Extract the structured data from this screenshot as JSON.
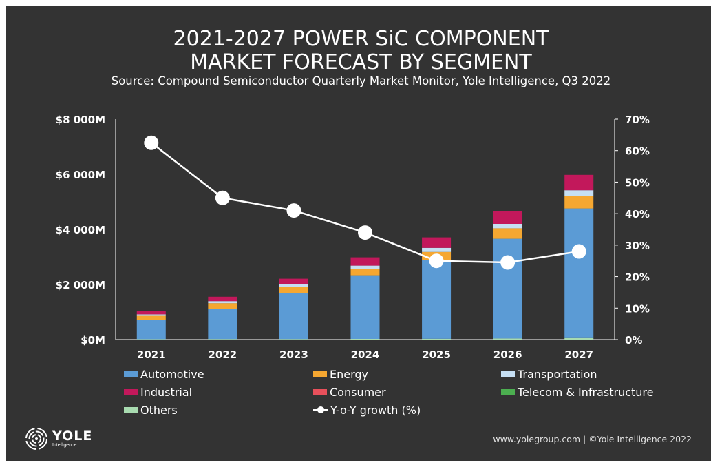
{
  "title_lines": [
    "2021-2027 POWER SiC COMPONENT",
    "MARKET FORECAST BY SEGMENT"
  ],
  "subtitle": "Source: Compound Semiconductor Quarterly Market Monitor, Yole Intelligence, Q3 2022",
  "footer": "www.yolegroup.com | ©Yole Intelligence 2022",
  "logo": {
    "name": "YOLE",
    "sub": "Intelligence"
  },
  "chart_data": {
    "type": "bar",
    "stacked": true,
    "categories": [
      "2021",
      "2022",
      "2023",
      "2024",
      "2025",
      "2026",
      "2027"
    ],
    "series": [
      {
        "name": "Automotive",
        "color": "#5b9bd5",
        "values": [
          685,
          1100,
          1680,
          2310,
          2850,
          3620,
          4680
        ]
      },
      {
        "name": "Energy",
        "color": "#f5a731",
        "values": [
          160,
          200,
          220,
          240,
          300,
          380,
          460
        ]
      },
      {
        "name": "Transportation",
        "color": "#c6dff3",
        "values": [
          55,
          75,
          90,
          110,
          150,
          160,
          200
        ]
      },
      {
        "name": "Industrial",
        "color": "#c2185b",
        "values": [
          125,
          160,
          200,
          300,
          380,
          450,
          560
        ]
      },
      {
        "name": "Consumer",
        "color": "#e8505b",
        "values": [
          0,
          0,
          0,
          0,
          0,
          0,
          0
        ]
      },
      {
        "name": "Telecom & Infrastructure",
        "color": "#4caf50",
        "values": [
          0,
          0,
          0,
          0,
          0,
          0,
          0
        ]
      },
      {
        "name": "Others",
        "color": "#a8dbb0",
        "values": [
          15,
          20,
          20,
          25,
          30,
          40,
          80
        ]
      }
    ],
    "line_series": {
      "name": "Y-o-Y growth (%)",
      "axis": "right",
      "color": "#ffffff",
      "values": [
        62.5,
        45,
        41,
        34,
        25,
        24.5,
        28
      ]
    },
    "ylim": [
      0,
      8000
    ],
    "yticks": [
      "$0M",
      "$2 000M",
      "$4 000M",
      "$6 000M",
      "$8 000M"
    ],
    "ytick_values": [
      0,
      2000,
      4000,
      6000,
      8000
    ],
    "y2lim": [
      0,
      70
    ],
    "y2ticks": [
      "0%",
      "10%",
      "20%",
      "30%",
      "40%",
      "50%",
      "60%",
      "70%"
    ],
    "y2tick_values": [
      0,
      10,
      20,
      30,
      40,
      50,
      60,
      70
    ],
    "legend_placement": "bottom",
    "grid": false
  }
}
